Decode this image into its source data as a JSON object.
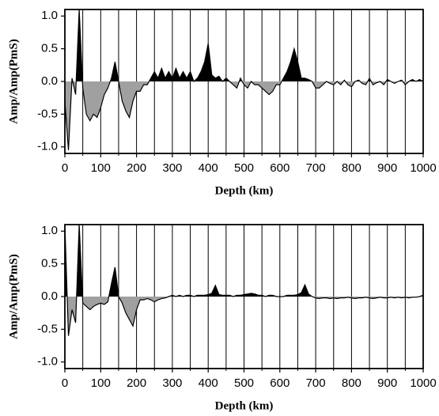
{
  "chart_data": [
    {
      "type": "line",
      "x_label": "Depth (km)",
      "y_label": "Amp/Amp(PmS)",
      "x": [
        0,
        10,
        20,
        30,
        40,
        50,
        60,
        70,
        80,
        90,
        100,
        110,
        120,
        130,
        140,
        150,
        160,
        170,
        180,
        190,
        200,
        210,
        220,
        230,
        240,
        250,
        260,
        270,
        280,
        290,
        300,
        310,
        320,
        330,
        340,
        350,
        360,
        370,
        380,
        390,
        400,
        410,
        420,
        430,
        440,
        450,
        460,
        470,
        480,
        490,
        500,
        510,
        520,
        530,
        540,
        550,
        560,
        570,
        580,
        590,
        600,
        610,
        620,
        630,
        640,
        650,
        660,
        670,
        680,
        690,
        700,
        710,
        720,
        730,
        740,
        750,
        760,
        770,
        780,
        790,
        800,
        810,
        820,
        830,
        840,
        850,
        860,
        870,
        880,
        890,
        900,
        910,
        920,
        930,
        940,
        950,
        960,
        970,
        980,
        990,
        1000
      ],
      "values": [
        -0.3,
        -1.05,
        0.05,
        -0.2,
        1.1,
        -0.1,
        -0.5,
        -0.6,
        -0.5,
        -0.55,
        -0.4,
        -0.2,
        -0.1,
        0.05,
        0.3,
        0.0,
        -0.3,
        -0.45,
        -0.55,
        -0.3,
        -0.15,
        -0.15,
        -0.05,
        -0.05,
        0.05,
        0.15,
        0.05,
        0.2,
        0.05,
        0.15,
        0.05,
        0.2,
        0.05,
        0.15,
        0.05,
        0.15,
        0.0,
        0.05,
        0.15,
        0.3,
        0.58,
        0.1,
        0.05,
        0.08,
        0.0,
        0.05,
        0.0,
        -0.05,
        -0.1,
        0.05,
        -0.05,
        -0.1,
        0.0,
        -0.05,
        -0.05,
        -0.1,
        -0.15,
        -0.2,
        -0.15,
        -0.05,
        -0.05,
        0.05,
        0.15,
        0.3,
        0.5,
        0.3,
        0.05,
        0.05,
        0.03,
        0.0,
        -0.1,
        -0.1,
        -0.05,
        0.0,
        -0.03,
        -0.05,
        0.0,
        -0.05,
        0.02,
        -0.05,
        -0.08,
        0.0,
        0.02,
        -0.03,
        -0.05,
        0.05,
        -0.05,
        -0.02,
        0.0,
        -0.05,
        0.03,
        0.0,
        -0.03,
        0.0,
        0.02,
        -0.05,
        0.0,
        0.03,
        0.0,
        0.03,
        0.0
      ],
      "positive_color": "#000000",
      "negative_color": "#a0a0a0",
      "line_color": "#000000",
      "xlim": [
        0,
        1000
      ],
      "xticks": [
        0,
        100,
        200,
        300,
        400,
        500,
        600,
        700,
        800,
        900,
        1000
      ],
      "xminorticks": [
        50,
        150,
        250,
        350,
        450,
        550,
        650,
        750,
        850,
        950
      ],
      "ylim": [
        -1.1,
        1.1
      ],
      "yticks": [
        {
          "value": -1,
          "label": "-1.0"
        },
        -0.5,
        {
          "value": 0,
          "label": "0.0"
        },
        0.5,
        {
          "value": 1,
          "label": "1.0"
        }
      ],
      "grid": true
    },
    {
      "type": "line",
      "x_label": "Depth (km)",
      "y_label": "Amp/Amp(PmS)",
      "x": [
        0,
        10,
        20,
        30,
        40,
        50,
        60,
        70,
        80,
        90,
        100,
        110,
        120,
        130,
        140,
        150,
        160,
        170,
        180,
        190,
        200,
        210,
        220,
        230,
        240,
        250,
        260,
        270,
        280,
        290,
        300,
        310,
        320,
        330,
        340,
        350,
        360,
        370,
        380,
        390,
        400,
        410,
        420,
        430,
        440,
        450,
        460,
        470,
        480,
        490,
        500,
        510,
        520,
        530,
        540,
        550,
        560,
        570,
        580,
        590,
        600,
        610,
        620,
        630,
        640,
        650,
        660,
        670,
        680,
        690,
        700,
        710,
        720,
        730,
        740,
        750,
        760,
        770,
        780,
        790,
        800,
        810,
        820,
        830,
        840,
        850,
        860,
        870,
        880,
        890,
        900,
        910,
        920,
        930,
        940,
        950,
        960,
        970,
        980,
        990,
        1000
      ],
      "values": [
        1.1,
        -0.6,
        -0.2,
        -0.4,
        1.1,
        -0.1,
        -0.15,
        -0.2,
        -0.15,
        -0.12,
        -0.1,
        -0.12,
        -0.08,
        0.2,
        0.45,
        0.0,
        -0.1,
        -0.25,
        -0.35,
        -0.45,
        -0.2,
        -0.05,
        -0.05,
        -0.03,
        -0.05,
        -0.08,
        -0.05,
        -0.03,
        -0.02,
        0.0,
        0.02,
        0.0,
        0.02,
        0.0,
        0.02,
        0.02,
        0.0,
        0.02,
        0.02,
        0.02,
        0.03,
        0.05,
        0.17,
        0.03,
        0.02,
        0.02,
        0.02,
        0.0,
        0.02,
        0.02,
        0.03,
        0.04,
        0.05,
        0.04,
        0.02,
        0.02,
        0.0,
        0.02,
        0.02,
        0.0,
        0.0,
        0.0,
        0.02,
        0.02,
        0.02,
        0.03,
        0.06,
        0.18,
        0.04,
        0.0,
        -0.02,
        -0.03,
        -0.02,
        -0.02,
        -0.03,
        -0.02,
        -0.03,
        -0.02,
        -0.02,
        -0.01,
        -0.02,
        -0.03,
        -0.02,
        -0.02,
        -0.01,
        -0.02,
        -0.03,
        -0.02,
        -0.01,
        -0.02,
        -0.02,
        -0.01,
        -0.02,
        -0.01,
        -0.02,
        -0.01,
        -0.02,
        -0.01,
        -0.01,
        0.0,
        0.02
      ],
      "positive_color": "#000000",
      "negative_color": "#a0a0a0",
      "line_color": "#000000",
      "xlim": [
        0,
        1000
      ],
      "xticks": [
        0,
        100,
        200,
        300,
        400,
        500,
        600,
        700,
        800,
        900,
        1000
      ],
      "xminorticks": [
        50,
        150,
        250,
        350,
        450,
        550,
        650,
        750,
        850,
        950
      ],
      "ylim": [
        -1.1,
        1.1
      ],
      "yticks": [
        {
          "value": -1,
          "label": "-1.0"
        },
        -0.5,
        {
          "value": 0,
          "label": "0.0"
        },
        0.5,
        {
          "value": 1,
          "label": "1.0"
        }
      ],
      "grid": true
    }
  ]
}
